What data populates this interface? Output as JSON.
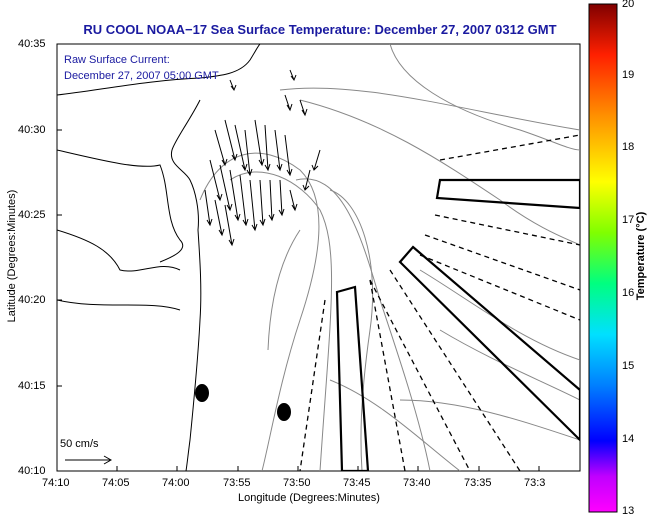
{
  "title": "RU COOL  NOAA−17  Sea Surface Temperature:  December 27, 2007 0312 GMT",
  "current_note": {
    "line1": "Raw Surface Current:",
    "line2": "December 27, 2007 05:00 GMT"
  },
  "scale_label": "50 cm/s",
  "axes": {
    "xlabel": "Longitude (Degrees:Minutes)",
    "ylabel": "Latitude (Degrees:Minutes)",
    "x_ticks": [
      "74:10",
      "74:05",
      "74:00",
      "73:55",
      "73:50",
      "73:45",
      "73:40",
      "73:35",
      "73:3"
    ],
    "y_ticks": [
      "40:35",
      "40:30",
      "40:25",
      "40:20",
      "40:15",
      "40:10"
    ]
  },
  "colorbar": {
    "label": "Temperature (°C)",
    "ticks": [
      "20",
      "19",
      "18",
      "17",
      "16",
      "15",
      "14",
      "13"
    ],
    "min": 13,
    "max": 20
  },
  "colors": {
    "title": "#1a1aa0",
    "map_lines": "#000000",
    "contours": "#888888"
  }
}
